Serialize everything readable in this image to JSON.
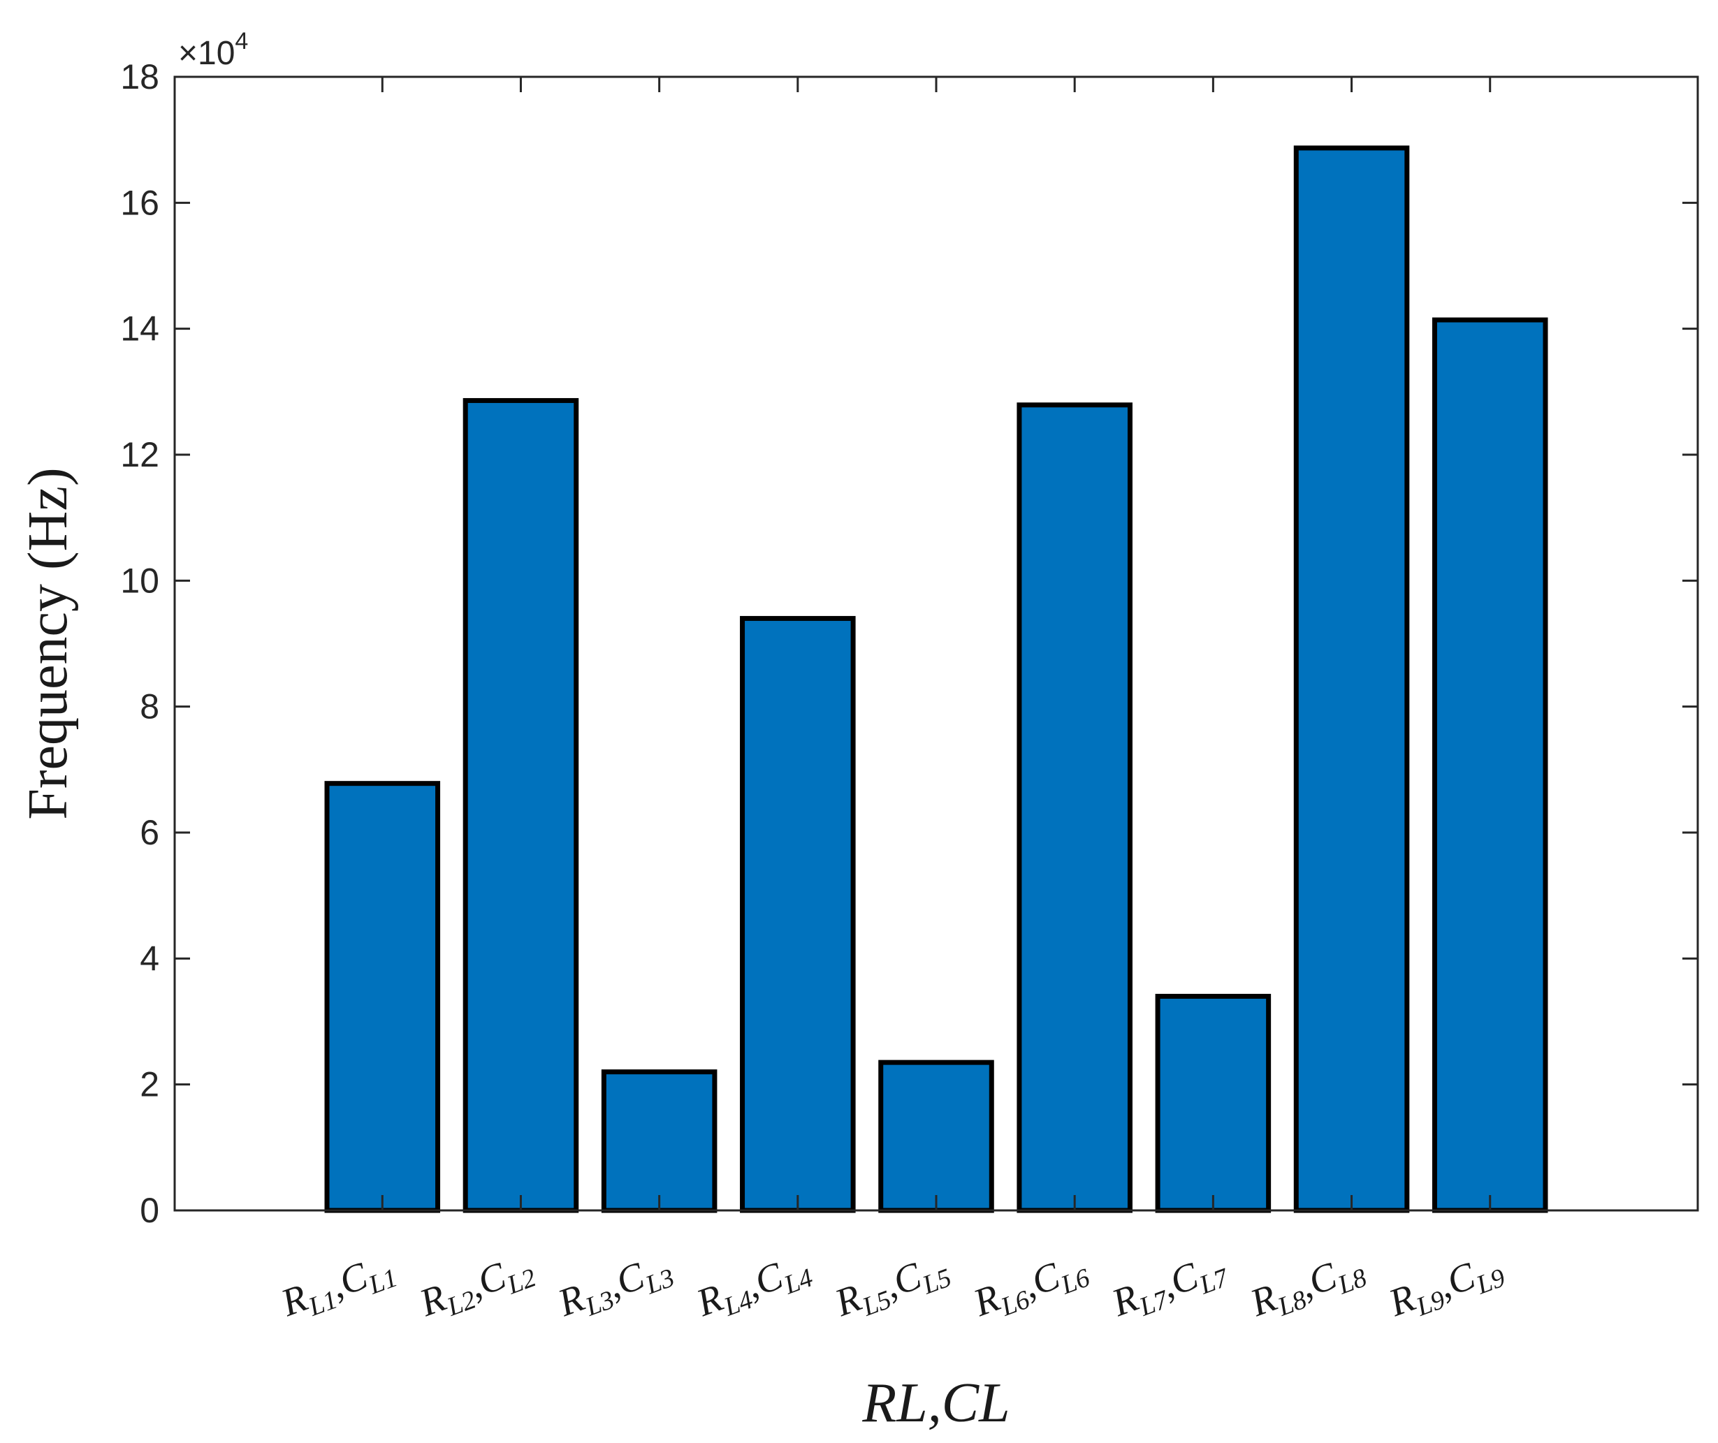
{
  "chart_data": {
    "type": "bar",
    "categories": [
      {
        "base": "R",
        "sub": "L1",
        "sep": ",",
        "base2": "C",
        "sub2": "L1"
      },
      {
        "base": "R",
        "sub": "L2",
        "sep": ",",
        "base2": "C",
        "sub2": "L2"
      },
      {
        "base": "R",
        "sub": "L3",
        "sep": ",",
        "base2": "C",
        "sub2": "L3"
      },
      {
        "base": "R",
        "sub": "L4",
        "sep": ",",
        "base2": "C",
        "sub2": "L4"
      },
      {
        "base": "R",
        "sub": "L5",
        "sep": ",",
        "base2": "C",
        "sub2": "L5"
      },
      {
        "base": "R",
        "sub": "L6",
        "sep": ",",
        "base2": "C",
        "sub2": "L6"
      },
      {
        "base": "R",
        "sub": "L7",
        "sep": ",",
        "base2": "C",
        "sub2": "L7"
      },
      {
        "base": "R",
        "sub": "L8",
        "sep": ",",
        "base2": "C",
        "sub2": "L8"
      },
      {
        "base": "R",
        "sub": "L9",
        "sep": ",",
        "base2": "C",
        "sub2": "L9"
      }
    ],
    "values": [
      67800,
      128600,
      22000,
      94000,
      23500,
      127900,
      34000,
      168700,
      141400
    ],
    "ylabel": "Frequency (Hz)",
    "xlabel": "RL,CL",
    "ylim": [
      0,
      180000
    ],
    "yticks": [
      0,
      20000,
      40000,
      60000,
      80000,
      100000,
      120000,
      140000,
      160000,
      180000
    ],
    "ytick_labels": [
      "0",
      "2",
      "4",
      "6",
      "8",
      "10",
      "12",
      "14",
      "16",
      "18"
    ],
    "exponent_label": {
      "prefix": "×10",
      "power": "4"
    },
    "bar_color": "#0072bd",
    "edge_color": "#000000",
    "grid": false,
    "legend": "none"
  }
}
